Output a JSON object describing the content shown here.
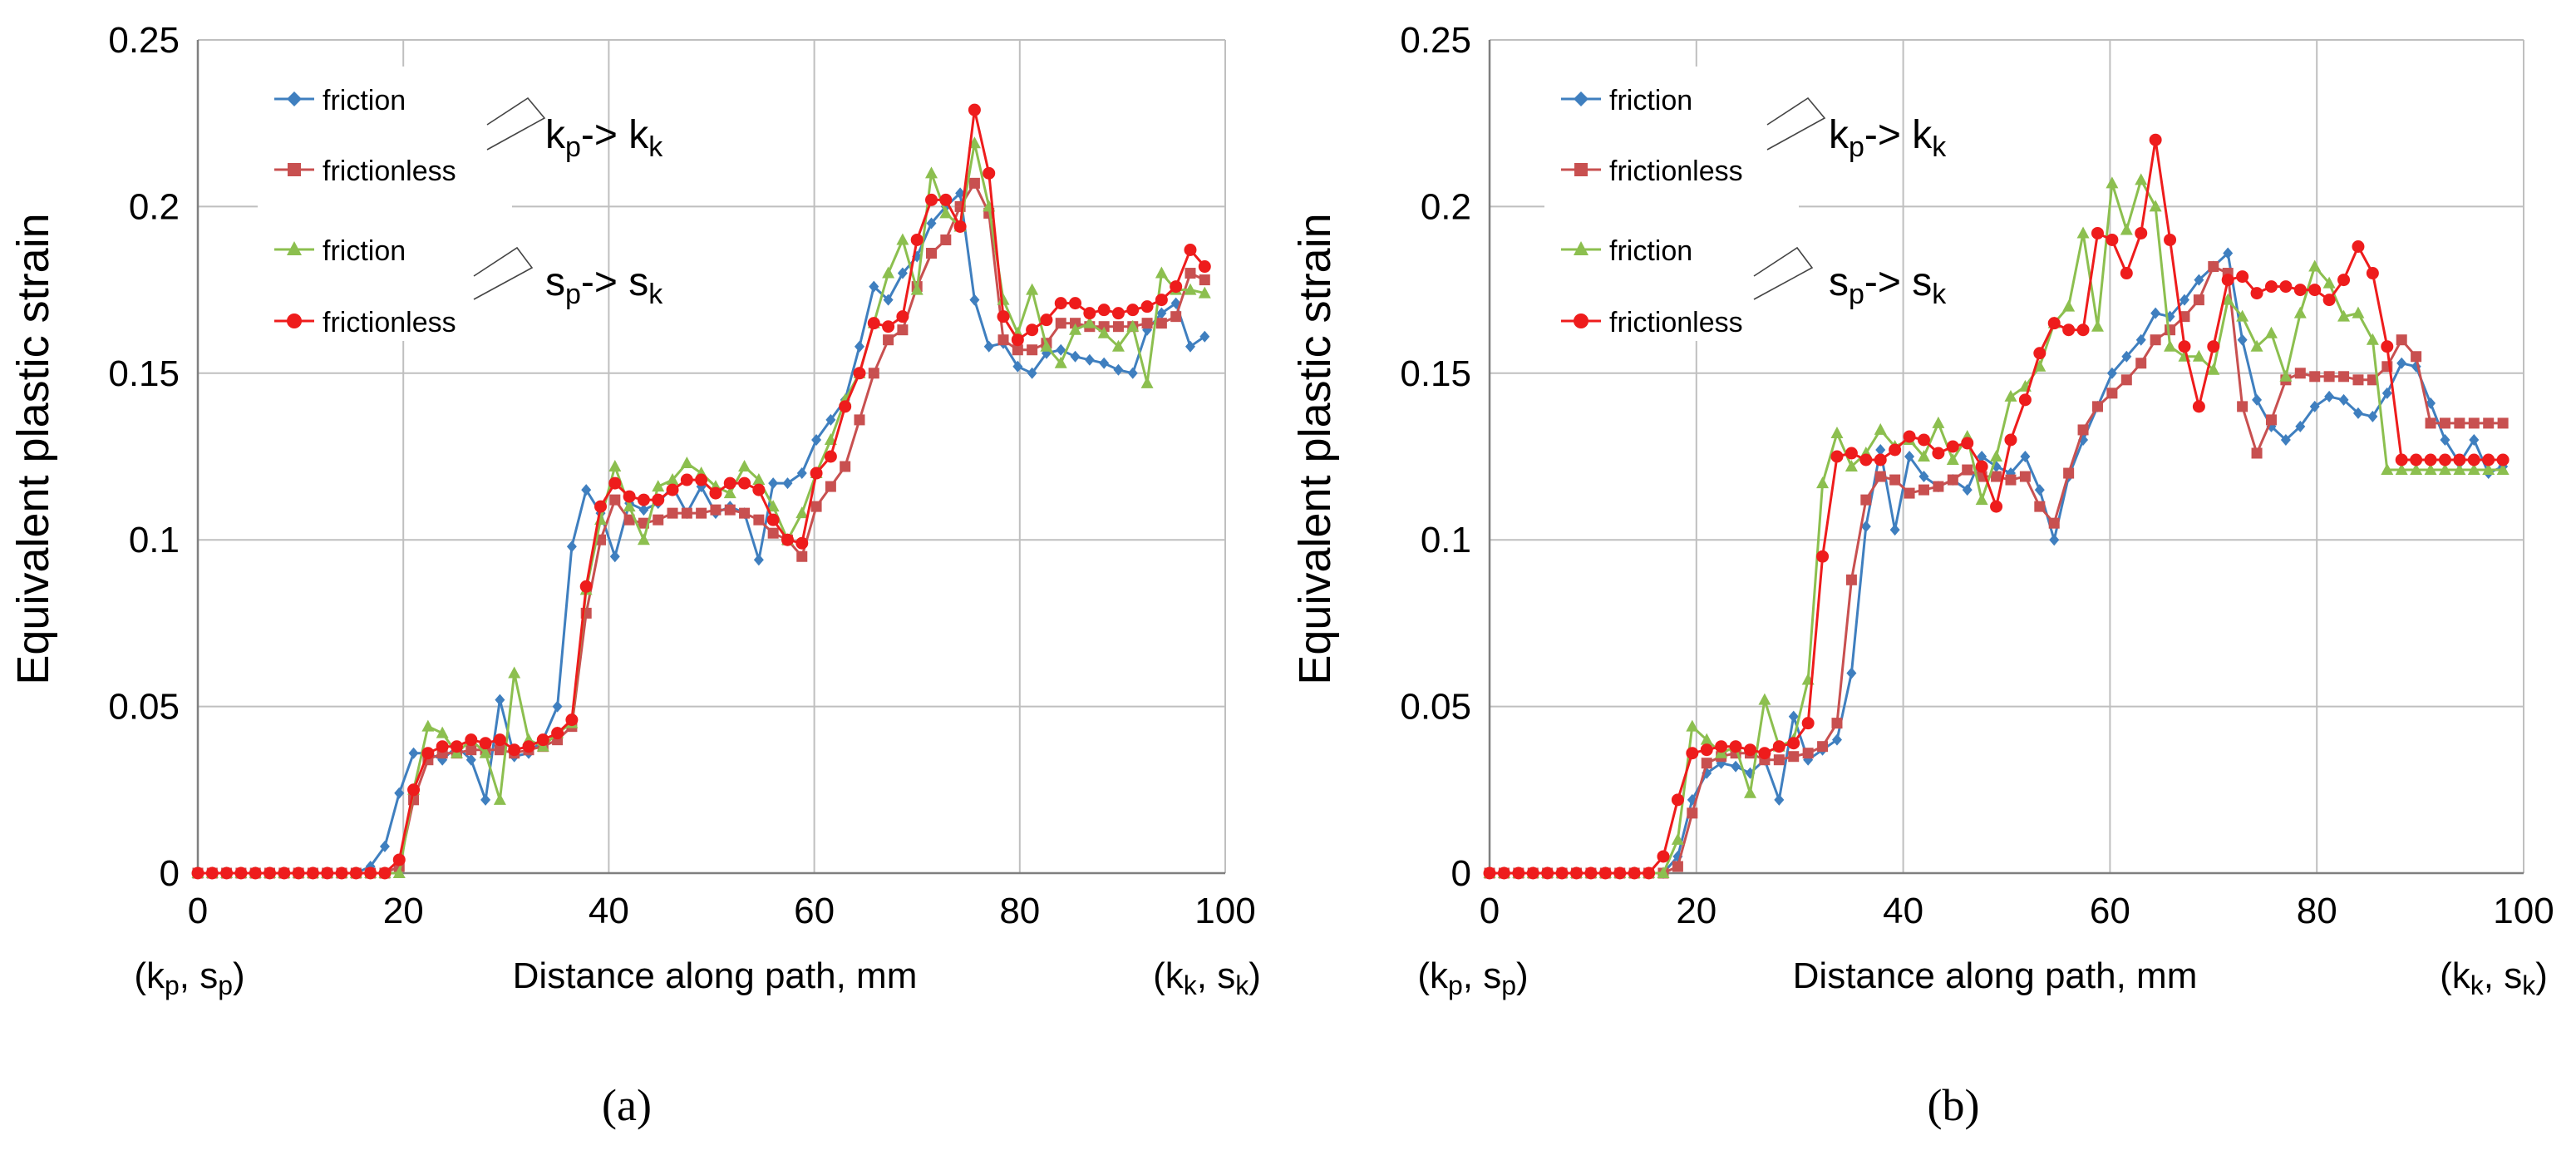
{
  "chart_data": [
    {
      "type": "line",
      "panel": "a",
      "caption": "(a)",
      "xlabel": "Distance along path, mm",
      "ylabel": "Equivalent plastic strain",
      "xlim": [
        0,
        100
      ],
      "ylim": [
        0,
        0.25
      ],
      "x_ticks": [
        0,
        20,
        40,
        60,
        80,
        100
      ],
      "y_ticks": [
        0,
        0.05,
        0.1,
        0.15,
        0.2,
        0.25
      ],
      "x_tick_labels": [
        "0",
        "20",
        "40",
        "60",
        "80",
        "100"
      ],
      "y_tick_labels": [
        "0",
        "0.05",
        "0.1",
        "0.15",
        "0.2",
        "0.25"
      ],
      "x_start_label": "(k_p, s_p)",
      "x_end_label": "(k_k, s_k)",
      "grid": true,
      "legend": {
        "position": "top-left",
        "entries": [
          "friction",
          "frictionless",
          "friction",
          "frictionless"
        ],
        "group_labels": [
          "k_p-> k_k",
          "s_p-> s_k"
        ]
      },
      "x": [
        0,
        1.4,
        2.8,
        4.2,
        5.6,
        7,
        8.4,
        9.8,
        11.2,
        12.6,
        14,
        15.4,
        16.8,
        18.2,
        19.6,
        21,
        22.4,
        23.8,
        25.2,
        26.6,
        28,
        29.4,
        30.8,
        32.2,
        33.6,
        35,
        36.4,
        37.8,
        39.2,
        40.6,
        42,
        43.4,
        44.8,
        46.2,
        47.6,
        49,
        50.4,
        51.8,
        53.2,
        54.6,
        56,
        57.4,
        58.8,
        60.2,
        61.6,
        63,
        64.4,
        65.8,
        67.2,
        68.6,
        70,
        71.4,
        72.8,
        74.2,
        75.6,
        77,
        78.4,
        79.8,
        81.2,
        82.6,
        84,
        85.4,
        86.8,
        88.2,
        89.6,
        91,
        92.4,
        93.8,
        95.2,
        96.6,
        98
      ],
      "series": [
        {
          "name": "friction",
          "group": "kp->kk",
          "color": "#3f7fbf",
          "marker": "diamond",
          "values": [
            0,
            0,
            0,
            0,
            0,
            0,
            0,
            0,
            0,
            0,
            0,
            0,
            0.002,
            0.008,
            0.024,
            0.036,
            0.036,
            0.034,
            0.038,
            0.034,
            0.022,
            0.052,
            0.035,
            0.036,
            0.04,
            0.05,
            0.098,
            0.115,
            0.108,
            0.095,
            0.111,
            0.109,
            0.111,
            0.116,
            0.108,
            0.116,
            0.108,
            0.11,
            0.108,
            0.094,
            0.117,
            0.117,
            0.12,
            0.13,
            0.136,
            0.142,
            0.158,
            0.176,
            0.172,
            0.18,
            0.185,
            0.195,
            0.2,
            0.204,
            0.172,
            0.158,
            0.159,
            0.152,
            0.15,
            0.156,
            0.157,
            0.155,
            0.154,
            0.153,
            0.151,
            0.15,
            0.163,
            0.168,
            0.171,
            0.158,
            0.161
          ]
        },
        {
          "name": "frictionless",
          "group": "kp->kk",
          "color": "#c85050",
          "marker": "square",
          "values": [
            0,
            0,
            0,
            0,
            0,
            0,
            0,
            0,
            0,
            0,
            0,
            0,
            0,
            0,
            0.002,
            0.022,
            0.034,
            0.036,
            0.036,
            0.037,
            0.037,
            0.037,
            0.036,
            0.037,
            0.038,
            0.04,
            0.044,
            0.078,
            0.1,
            0.112,
            0.106,
            0.105,
            0.106,
            0.108,
            0.108,
            0.108,
            0.109,
            0.109,
            0.108,
            0.106,
            0.102,
            0.1,
            0.095,
            0.11,
            0.116,
            0.122,
            0.136,
            0.15,
            0.16,
            0.163,
            0.176,
            0.186,
            0.19,
            0.2,
            0.207,
            0.198,
            0.16,
            0.157,
            0.157,
            0.159,
            0.165,
            0.165,
            0.164,
            0.164,
            0.164,
            0.164,
            0.165,
            0.165,
            0.167,
            0.18,
            0.178
          ]
        },
        {
          "name": "friction",
          "group": "sp->sk",
          "color": "#8cbf4f",
          "marker": "triangle",
          "values": [
            0,
            0,
            0,
            0,
            0,
            0,
            0,
            0,
            0,
            0,
            0,
            0,
            0,
            0,
            0,
            0.025,
            0.044,
            0.042,
            0.036,
            0.04,
            0.036,
            0.022,
            0.06,
            0.04,
            0.038,
            0.042,
            0.045,
            0.085,
            0.106,
            0.122,
            0.11,
            0.1,
            0.116,
            0.118,
            0.123,
            0.12,
            0.116,
            0.114,
            0.122,
            0.118,
            0.11,
            0.1,
            0.108,
            0.12,
            0.13,
            0.142,
            0.15,
            0.165,
            0.18,
            0.19,
            0.175,
            0.21,
            0.198,
            0.194,
            0.219,
            0.2,
            0.172,
            0.162,
            0.175,
            0.158,
            0.153,
            0.163,
            0.165,
            0.162,
            0.158,
            0.164,
            0.147,
            0.18,
            0.175,
            0.175,
            0.174
          ]
        },
        {
          "name": "frictionless",
          "group": "sp->sk",
          "color": "#ee1c1c",
          "marker": "circle",
          "values": [
            0,
            0,
            0,
            0,
            0,
            0,
            0,
            0,
            0,
            0,
            0,
            0,
            0,
            0,
            0.004,
            0.025,
            0.036,
            0.038,
            0.038,
            0.04,
            0.039,
            0.04,
            0.037,
            0.038,
            0.04,
            0.042,
            0.046,
            0.086,
            0.11,
            0.117,
            0.113,
            0.112,
            0.112,
            0.115,
            0.118,
            0.118,
            0.114,
            0.117,
            0.117,
            0.115,
            0.106,
            0.1,
            0.099,
            0.12,
            0.125,
            0.14,
            0.15,
            0.165,
            0.164,
            0.167,
            0.19,
            0.202,
            0.202,
            0.194,
            0.229,
            0.21,
            0.167,
            0.16,
            0.163,
            0.166,
            0.171,
            0.171,
            0.168,
            0.169,
            0.168,
            0.169,
            0.17,
            0.172,
            0.176,
            0.187,
            0.182
          ]
        }
      ]
    },
    {
      "type": "line",
      "panel": "b",
      "caption": "(b)",
      "xlabel": "Distance along path, mm",
      "ylabel": "Equivalent plastic strain",
      "xlim": [
        0,
        100
      ],
      "ylim": [
        0,
        0.25
      ],
      "x_ticks": [
        0,
        20,
        40,
        60,
        80,
        100
      ],
      "y_ticks": [
        0,
        0.05,
        0.1,
        0.15,
        0.2,
        0.25
      ],
      "x_tick_labels": [
        "0",
        "20",
        "40",
        "60",
        "80",
        "100"
      ],
      "y_tick_labels": [
        "0",
        "0.05",
        "0.1",
        "0.15",
        "0.2",
        "0.25"
      ],
      "x_start_label": "(k_p, s_p)",
      "x_end_label": "(k_k, s_k)",
      "grid": true,
      "legend": {
        "position": "top-left",
        "entries": [
          "friction",
          "frictionless",
          "friction",
          "frictionless"
        ],
        "group_labels": [
          "k_p-> k_k",
          "s_p-> s_k"
        ]
      },
      "x": [
        0,
        1.4,
        2.8,
        4.2,
        5.6,
        7,
        8.4,
        9.8,
        11.2,
        12.6,
        14,
        15.4,
        16.8,
        18.2,
        19.6,
        21,
        22.4,
        23.8,
        25.2,
        26.6,
        28,
        29.4,
        30.8,
        32.2,
        33.6,
        35,
        36.4,
        37.8,
        39.2,
        40.6,
        42,
        43.4,
        44.8,
        46.2,
        47.6,
        49,
        50.4,
        51.8,
        53.2,
        54.6,
        56,
        57.4,
        58.8,
        60.2,
        61.6,
        63,
        64.4,
        65.8,
        67.2,
        68.6,
        70,
        71.4,
        72.8,
        74.2,
        75.6,
        77,
        78.4,
        79.8,
        81.2,
        82.6,
        84,
        85.4,
        86.8,
        88.2,
        89.6,
        91,
        92.4,
        93.8,
        95.2,
        96.6,
        98
      ],
      "series": [
        {
          "name": "friction",
          "group": "kp->kk",
          "color": "#3f7fbf",
          "marker": "diamond",
          "values": [
            0,
            0,
            0,
            0,
            0,
            0,
            0,
            0,
            0,
            0,
            0,
            0,
            0,
            0.005,
            0.022,
            0.03,
            0.033,
            0.032,
            0.03,
            0.034,
            0.022,
            0.047,
            0.034,
            0.037,
            0.04,
            0.06,
            0.104,
            0.127,
            0.103,
            0.125,
            0.119,
            0.116,
            0.118,
            0.115,
            0.125,
            0.122,
            0.12,
            0.125,
            0.115,
            0.1,
            0.119,
            0.13,
            0.14,
            0.15,
            0.155,
            0.16,
            0.168,
            0.167,
            0.172,
            0.178,
            0.182,
            0.186,
            0.16,
            0.142,
            0.134,
            0.13,
            0.134,
            0.14,
            0.143,
            0.142,
            0.138,
            0.137,
            0.144,
            0.153,
            0.152,
            0.141,
            0.13,
            0.123,
            0.13,
            0.12,
            0.122
          ]
        },
        {
          "name": "frictionless",
          "group": "kp->kk",
          "color": "#c85050",
          "marker": "square",
          "values": [
            0,
            0,
            0,
            0,
            0,
            0,
            0,
            0,
            0,
            0,
            0,
            0,
            0,
            0.002,
            0.018,
            0.033,
            0.035,
            0.036,
            0.036,
            0.034,
            0.034,
            0.035,
            0.036,
            0.038,
            0.045,
            0.088,
            0.112,
            0.119,
            0.118,
            0.114,
            0.115,
            0.116,
            0.118,
            0.121,
            0.119,
            0.119,
            0.118,
            0.119,
            0.11,
            0.105,
            0.12,
            0.133,
            0.14,
            0.144,
            0.148,
            0.153,
            0.16,
            0.163,
            0.167,
            0.172,
            0.182,
            0.18,
            0.14,
            0.126,
            0.136,
            0.148,
            0.15,
            0.149,
            0.149,
            0.149,
            0.148,
            0.148,
            0.152,
            0.16,
            0.155,
            0.135,
            0.135,
            0.135,
            0.135,
            0.135,
            0.135
          ]
        },
        {
          "name": "friction",
          "group": "sp->sk",
          "color": "#8cbf4f",
          "marker": "triangle",
          "values": [
            0,
            0,
            0,
            0,
            0,
            0,
            0,
            0,
            0,
            0,
            0,
            0,
            0,
            0.01,
            0.044,
            0.04,
            0.036,
            0.038,
            0.024,
            0.052,
            0.038,
            0.04,
            0.058,
            0.117,
            0.132,
            0.122,
            0.126,
            0.133,
            0.128,
            0.13,
            0.125,
            0.135,
            0.124,
            0.131,
            0.112,
            0.125,
            0.143,
            0.146,
            0.152,
            0.165,
            0.17,
            0.192,
            0.164,
            0.207,
            0.193,
            0.208,
            0.2,
            0.158,
            0.155,
            0.155,
            0.151,
            0.172,
            0.167,
            0.158,
            0.162,
            0.149,
            0.168,
            0.182,
            0.177,
            0.167,
            0.168,
            0.16,
            0.121,
            0.121,
            0.121,
            0.121,
            0.121,
            0.121,
            0.121,
            0.121,
            0.121
          ]
        },
        {
          "name": "frictionless",
          "group": "sp->sk",
          "color": "#ee1c1c",
          "marker": "circle",
          "values": [
            0,
            0,
            0,
            0,
            0,
            0,
            0,
            0,
            0,
            0,
            0,
            0,
            0.005,
            0.022,
            0.036,
            0.037,
            0.038,
            0.038,
            0.037,
            0.036,
            0.038,
            0.039,
            0.045,
            0.095,
            0.125,
            0.126,
            0.124,
            0.124,
            0.127,
            0.131,
            0.13,
            0.126,
            0.128,
            0.129,
            0.122,
            0.11,
            0.13,
            0.142,
            0.156,
            0.165,
            0.163,
            0.163,
            0.192,
            0.19,
            0.18,
            0.192,
            0.22,
            0.19,
            0.158,
            0.14,
            0.158,
            0.178,
            0.179,
            0.174,
            0.176,
            0.176,
            0.175,
            0.175,
            0.172,
            0.178,
            0.188,
            0.18,
            0.158,
            0.124,
            0.124,
            0.124,
            0.124,
            0.124,
            0.124,
            0.124,
            0.124
          ]
        }
      ]
    }
  ],
  "panels": [
    {
      "caption": "(a)",
      "xlabel": "Distance along path, mm",
      "ylabel": "Equivalent plastic strain",
      "x_start": {
        "open": "(k",
        "sub1": "p",
        "mid": ", s",
        "sub2": "p",
        "close": ")"
      },
      "x_end": {
        "open": "(k",
        "sub1": "k",
        "mid": ", s",
        "sub2": "k",
        "close": ")"
      },
      "legend_labels": [
        "friction",
        "frictionless",
        "friction",
        "frictionless"
      ],
      "group1": {
        "a": "k",
        "a_sub": "p",
        "arrow": "-> k",
        "b_sub": "k"
      },
      "group2": {
        "a": "s",
        "a_sub": "p",
        "arrow": "-> s",
        "b_sub": "k"
      }
    },
    {
      "caption": "(b)",
      "xlabel": "Distance along path, mm",
      "ylabel": "Equivalent plastic strain",
      "x_start": {
        "open": "(k",
        "sub1": "p",
        "mid": ", s",
        "sub2": "p",
        "close": ")"
      },
      "x_end": {
        "open": "(k",
        "sub1": "k",
        "mid": ", s",
        "sub2": "k",
        "close": ")"
      },
      "legend_labels": [
        "friction",
        "frictionless",
        "friction",
        "frictionless"
      ],
      "group1": {
        "a": "k",
        "a_sub": "p",
        "arrow": "-> k",
        "b_sub": "k"
      },
      "group2": {
        "a": "s",
        "a_sub": "p",
        "arrow": "-> s",
        "b_sub": "k"
      }
    }
  ]
}
